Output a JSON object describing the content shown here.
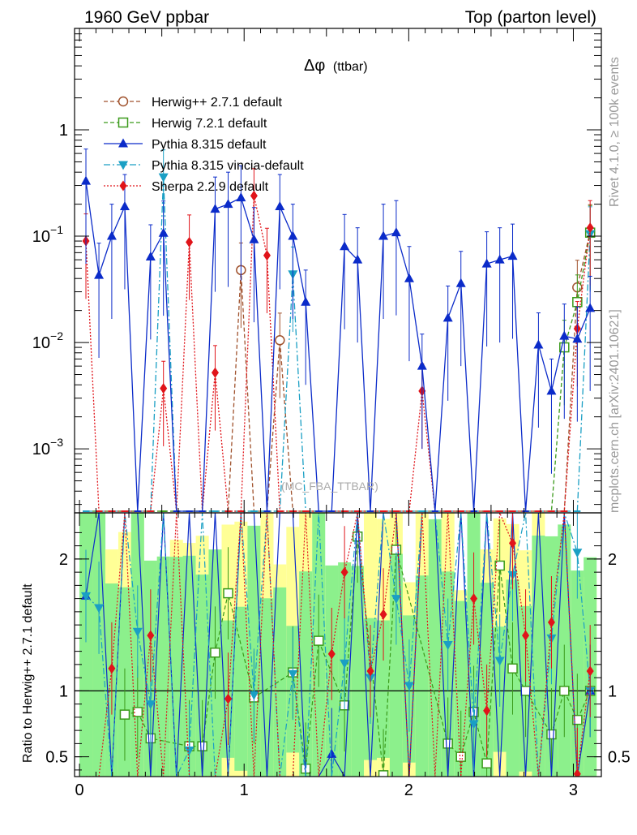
{
  "header": {
    "left": "1960 GeV ppbar",
    "right": "Top (parton level)"
  },
  "side_labels": {
    "rivet": "Rivet 4.1.0, ≥ 100k events",
    "mcplots": "mcplots.cern.ch [arXiv:2401.10621]"
  },
  "watermark": "(MC_FBA_TTBAR)",
  "colors": {
    "herwig_old": "#a0522d",
    "herwig_new": "#3a9a1a",
    "pythia": "#0b2bc9",
    "vincia": "#1a9fc4",
    "sherpa": "#e0141a",
    "band_outer": "#ffff96",
    "band_inner": "#8cf08c"
  },
  "chart_data": [
    {
      "type": "line",
      "panel": "main",
      "title": "Δφ (ttbar)",
      "title_main": "Δφ",
      "title_sub": "(ttbar)",
      "xlabel": "",
      "ylabel": "",
      "yscale": "log",
      "xlim": [
        -0.03,
        3.17
      ],
      "ylim": [
        0.00025,
        9.0
      ],
      "yticks": [
        {
          "value": 0.001,
          "base": "10",
          "exp": "−3"
        },
        {
          "value": 0.01,
          "base": "10",
          "exp": "−2"
        },
        {
          "value": 0.1,
          "base": "10",
          "exp": "−1"
        },
        {
          "value": 1,
          "base": "1",
          "exp": ""
        }
      ],
      "legend_position": "top-left",
      "x": [
        0.039,
        0.118,
        0.196,
        0.275,
        0.353,
        0.432,
        0.51,
        0.589,
        0.667,
        0.746,
        0.824,
        0.903,
        0.981,
        1.06,
        1.139,
        1.217,
        1.296,
        1.374,
        1.453,
        1.532,
        1.61,
        1.689,
        1.767,
        1.846,
        1.924,
        2.003,
        2.081,
        2.16,
        2.238,
        2.317,
        2.395,
        2.474,
        2.553,
        2.631,
        2.71,
        2.788,
        2.867,
        2.945,
        3.024,
        3.102
      ],
      "series": [
        {
          "name": "Herwig++ 2.7.1 default",
          "style": "dashed",
          "marker": "open-circle",
          "values": [
            0,
            0,
            0,
            0,
            0,
            0,
            0,
            0,
            0,
            0,
            0,
            0,
            0.048,
            0,
            0,
            0.0105,
            0,
            0,
            0,
            0,
            0,
            0,
            0,
            0,
            0,
            0,
            0,
            0,
            0,
            0,
            0,
            0,
            0,
            0,
            0,
            0,
            0,
            0,
            0.033,
            0.11
          ]
        },
        {
          "name": "Herwig 7.2.1 default",
          "style": "dashed",
          "marker": "open-square",
          "values": [
            0,
            0,
            0,
            0,
            0,
            0,
            0,
            0,
            0,
            0,
            0,
            0,
            0,
            0,
            0,
            0,
            0,
            0,
            0,
            0,
            0,
            0,
            0,
            0,
            0,
            0,
            0,
            0,
            0,
            0,
            0,
            0,
            0,
            0,
            0,
            0,
            0,
            0.009,
            0.024,
            0.108
          ]
        },
        {
          "name": "Pythia 8.315 default",
          "style": "solid",
          "marker": "filled-triangle-up",
          "values": [
            0.33,
            0.043,
            0.1,
            0.19,
            0,
            0.064,
            0.107,
            0,
            0,
            0,
            0.18,
            0.2,
            0.23,
            0.093,
            0,
            0.19,
            0.1,
            0.024,
            0,
            0,
            0.08,
            0.06,
            0,
            0.1,
            0.108,
            0.04,
            0.006,
            0,
            0.017,
            0.036,
            0,
            0.055,
            0.06,
            0.065,
            0,
            0.0095,
            0.0035,
            0.0115,
            0.0108,
            0.021
          ]
        },
        {
          "name": "Pythia 8.315 vincia-default",
          "style": "dashdot",
          "marker": "filled-triangle-down",
          "values": [
            0,
            0,
            0,
            0,
            0,
            0,
            0.36,
            0,
            0,
            0,
            0,
            0,
            0,
            0,
            0,
            0,
            0.044,
            0,
            0,
            0,
            0,
            0,
            0,
            0,
            0,
            0,
            0,
            0,
            0,
            0,
            0,
            0,
            0,
            0,
            0,
            0,
            0,
            0,
            0,
            0.105
          ]
        },
        {
          "name": "Sherpa 2.2.9 default",
          "style": "dotted",
          "marker": "filled-diamond",
          "values": [
            0.09,
            0,
            0,
            0,
            0,
            0,
            0.0037,
            0,
            0.088,
            0,
            0.0052,
            0,
            0,
            0.24,
            0.066,
            0,
            0,
            0,
            0,
            0,
            0,
            0,
            0,
            0,
            0,
            0,
            0.0035,
            0,
            0,
            0,
            0,
            0,
            0,
            0,
            0,
            0,
            0,
            0,
            0.0135,
            0.12
          ]
        }
      ]
    },
    {
      "type": "line",
      "panel": "ratio",
      "ylabel": "Ratio to Herwig++ 2.7.1 default",
      "xlim": [
        -0.03,
        3.17
      ],
      "ylim": [
        0.35,
        2.35
      ],
      "xticks": [
        0,
        1,
        2,
        3
      ],
      "yticks": [
        0.5,
        1,
        2
      ],
      "reference_line": 1,
      "series": [
        {
          "name": "Herwig 7.2.1 default",
          "points": [
            [
              0.275,
              0.82
            ],
            [
              0.353,
              0.84
            ],
            [
              0.432,
              0.64
            ],
            [
              0.667,
              0.58
            ],
            [
              0.746,
              0.58
            ],
            [
              0.824,
              1.29
            ],
            [
              0.903,
              1.74
            ],
            [
              1.06,
              0.95
            ],
            [
              1.296,
              1.14
            ],
            [
              1.374,
              0.41
            ],
            [
              1.453,
              1.38
            ],
            [
              1.61,
              0.89
            ],
            [
              1.689,
              2.17
            ],
            [
              1.846,
              0.36
            ],
            [
              1.924,
              2.07
            ],
            [
              2.238,
              0.6
            ],
            [
              2.317,
              0.5
            ],
            [
              2.395,
              0.84
            ],
            [
              2.474,
              0.45
            ],
            [
              2.553,
              1.95
            ],
            [
              2.631,
              1.17
            ],
            [
              2.71,
              1.0
            ],
            [
              2.867,
              0.67
            ],
            [
              2.945,
              1.0
            ],
            [
              3.024,
              0.78
            ],
            [
              3.102,
              1.0
            ]
          ]
        },
        {
          "name": "Pythia 8.315 default",
          "points": [
            [
              0.039,
              1.72
            ],
            [
              0.118,
              2.35
            ],
            [
              0.196,
              0.35
            ],
            [
              0.275,
              2.35
            ],
            [
              0.353,
              2.35
            ],
            [
              0.432,
              0.35
            ],
            [
              0.51,
              2.35
            ],
            [
              0.589,
              0.35
            ],
            [
              0.667,
              2.35
            ],
            [
              0.746,
              0.35
            ],
            [
              0.824,
              2.35
            ],
            [
              0.903,
              0.35
            ],
            [
              0.981,
              2.35
            ],
            [
              1.06,
              2.35
            ],
            [
              1.139,
              0.35
            ],
            [
              1.217,
              2.35
            ],
            [
              1.296,
              2.35
            ],
            [
              1.374,
              0.35
            ],
            [
              1.453,
              0.35
            ],
            [
              1.532,
              0.52
            ],
            [
              1.61,
              0.35
            ],
            [
              1.689,
              2.35
            ],
            [
              1.767,
              0.35
            ],
            [
              1.846,
              2.35
            ],
            [
              1.924,
              2.35
            ],
            [
              2.003,
              0.35
            ],
            [
              2.081,
              2.35
            ],
            [
              2.16,
              2.35
            ],
            [
              2.238,
              0.35
            ],
            [
              2.317,
              2.35
            ],
            [
              2.395,
              0.35
            ],
            [
              2.474,
              2.35
            ],
            [
              2.553,
              0.35
            ],
            [
              2.631,
              2.35
            ],
            [
              2.71,
              0.35
            ],
            [
              2.788,
              2.35
            ],
            [
              2.867,
              0.35
            ],
            [
              2.945,
              2.35
            ],
            [
              3.024,
              0.35
            ],
            [
              3.102,
              1.0
            ]
          ]
        },
        {
          "name": "Pythia 8.315 vincia-default",
          "points": [
            [
              0.039,
              1.72
            ],
            [
              0.118,
              1.63
            ],
            [
              0.196,
              0.35
            ],
            [
              0.275,
              2.35
            ],
            [
              0.353,
              1.45
            ],
            [
              0.432,
              0.9
            ],
            [
              0.51,
              2.35
            ],
            [
              0.589,
              0.35
            ],
            [
              0.667,
              0.55
            ],
            [
              0.746,
              2.35
            ],
            [
              0.824,
              0.35
            ],
            [
              0.903,
              0.35
            ],
            [
              0.981,
              2.35
            ],
            [
              1.06,
              0.97
            ],
            [
              1.139,
              2.35
            ],
            [
              1.217,
              0.35
            ],
            [
              1.296,
              1.13
            ],
            [
              1.374,
              0.35
            ],
            [
              1.453,
              2.35
            ],
            [
              1.532,
              0.35
            ],
            [
              1.61,
              1.21
            ],
            [
              1.689,
              2.35
            ],
            [
              1.767,
              1.1
            ],
            [
              1.846,
              2.35
            ],
            [
              1.924,
              1.7
            ],
            [
              2.003,
              1.04
            ],
            [
              2.081,
              2.35
            ],
            [
              2.16,
              2.35
            ],
            [
              2.238,
              1.35
            ],
            [
              2.317,
              2.35
            ],
            [
              2.395,
              0.75
            ],
            [
              2.474,
              2.35
            ],
            [
              2.553,
              1.23
            ],
            [
              2.631,
              1.88
            ],
            [
              2.71,
              2.35
            ],
            [
              2.788,
              0.35
            ],
            [
              2.867,
              1.4
            ],
            [
              2.945,
              2.35
            ],
            [
              3.024,
              2.05
            ],
            [
              3.102,
              1.0
            ]
          ]
        },
        {
          "name": "Sherpa 2.2.9 default",
          "points": [
            [
              0.039,
              0.35
            ],
            [
              0.118,
              0.35
            ],
            [
              0.196,
              1.17
            ],
            [
              0.275,
              2.35
            ],
            [
              0.353,
              0.35
            ],
            [
              0.432,
              1.42
            ],
            [
              0.51,
              0.35
            ],
            [
              0.589,
              2.35
            ],
            [
              0.667,
              0.35
            ],
            [
              0.746,
              0.35
            ],
            [
              0.824,
              0.35
            ],
            [
              0.903,
              0.94
            ],
            [
              0.981,
              2.35
            ],
            [
              1.06,
              0.35
            ],
            [
              1.139,
              2.35
            ],
            [
              1.217,
              0.35
            ],
            [
              1.296,
              0.35
            ],
            [
              1.374,
              2.35
            ],
            [
              1.453,
              0.35
            ],
            [
              1.532,
              1.28
            ],
            [
              1.61,
              1.9
            ],
            [
              1.689,
              2.35
            ],
            [
              1.767,
              1.15
            ],
            [
              1.846,
              1.58
            ],
            [
              1.924,
              2.35
            ],
            [
              2.003,
              0.35
            ],
            [
              2.081,
              2.35
            ],
            [
              2.16,
              0.35
            ],
            [
              2.238,
              2.35
            ],
            [
              2.317,
              0.35
            ],
            [
              2.395,
              1.7
            ],
            [
              2.474,
              0.85
            ],
            [
              2.553,
              2.35
            ],
            [
              2.631,
              2.12
            ],
            [
              2.71,
              1.42
            ],
            [
              2.788,
              0.35
            ],
            [
              2.867,
              1.52
            ],
            [
              2.945,
              2.35
            ],
            [
              3.024,
              0.37
            ],
            [
              3.102,
              1.15
            ]
          ]
        }
      ]
    }
  ]
}
